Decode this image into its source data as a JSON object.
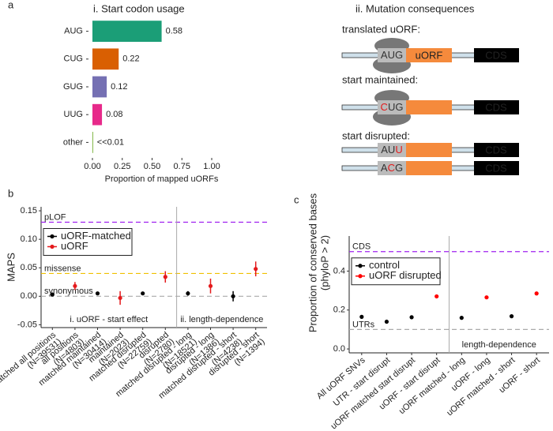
{
  "panel_letters": [
    "a",
    "b",
    "c"
  ],
  "chart_data": [
    {
      "type": "bar",
      "title": "i. Start codon usage",
      "categories": [
        "AUG",
        "CUG",
        "GUG",
        "UUG",
        "other"
      ],
      "values": [
        0.58,
        0.22,
        0.12,
        0.08,
        0.005
      ],
      "value_labels": [
        "0.58",
        "0.22",
        "0.12",
        "0.08",
        "<<0.01"
      ],
      "colors": [
        "#1b9e77",
        "#d95f02",
        "#7570b3",
        "#e7298a",
        "#66a61e"
      ],
      "xlabel": "Proportion of mapped uORFs",
      "xlim": [
        0,
        1
      ],
      "xticks": [
        {
          "value": 0,
          "label": "0.00"
        },
        {
          "value": 0.25,
          "label": "0.25"
        },
        {
          "value": 0.5,
          "label": "0.50"
        },
        {
          "value": 0.75,
          "label": "0.75"
        },
        {
          "value": 1,
          "label": "1.00"
        }
      ]
    },
    {
      "type": "pointrange",
      "ylabel": [
        "MAPS"
      ],
      "categories": [
        "matched all positions",
        "all positions",
        "matched maintained",
        "maintained",
        "matched disrupted",
        "disrupted",
        "matched disrupted - long",
        "disrupted - long",
        "matched disrupted - short",
        "disrupted - short"
      ],
      "category_notes": [
        "(N=39531)",
        "(N=4803)",
        "(N=30414)",
        "(N=2023)",
        "(N=22759)",
        "(N=2780)",
        "(N=18521)",
        "(N=1386)",
        "(N=4238)",
        "(N=1394)"
      ],
      "series": [
        {
          "name": "uORF-matched",
          "color": "#000000",
          "values": [
            0.003,
            null,
            0.005,
            null,
            0.005,
            null,
            0.005,
            null,
            0.0,
            null
          ],
          "errors": [
            0.002,
            null,
            0.003,
            null,
            0.003,
            null,
            0.004,
            null,
            0.009,
            null
          ]
        },
        {
          "name": "uORF",
          "color": "#e41a1c",
          "values": [
            null,
            0.018,
            null,
            -0.003,
            null,
            0.034,
            null,
            0.018,
            null,
            0.048
          ],
          "errors": [
            null,
            0.007,
            null,
            0.012,
            null,
            0.01,
            null,
            0.013,
            null,
            0.013
          ]
        }
      ],
      "reference_lines": [
        {
          "label": "pLOF",
          "value": 0.13,
          "color": "#a020f0"
        },
        {
          "label": "missense",
          "value": 0.04,
          "color": "#f0c000"
        },
        {
          "label": "synonymous",
          "value": 0,
          "color": "#aaaaaa"
        }
      ],
      "sections": [
        {
          "label": "i. uORF - start effect",
          "count": 6
        },
        {
          "label": "ii. length-dependence",
          "count": 4
        }
      ],
      "ylim": [
        -0.055,
        0.157
      ],
      "yticks": [
        {
          "value": -0.05,
          "label": "-0.05"
        },
        {
          "value": 0,
          "label": "0.00"
        },
        {
          "value": 0.05,
          "label": "0.05"
        },
        {
          "value": 0.1,
          "label": "0.10"
        },
        {
          "value": 0.15,
          "label": "0.15"
        }
      ],
      "legend": "top-left"
    },
    {
      "type": "pointrange",
      "ylabel": [
        "Proportion of conserved bases",
        "(phyloP > 2)"
      ],
      "categories": [
        "All uORF SNVs",
        "UTR - start disrupt",
        "uORF matched start disrupt",
        "uORF - start disrupt",
        "uORF matched - long",
        "uORF - long",
        "uORF matched - short",
        "uORF - short"
      ],
      "series": [
        {
          "name": "control",
          "color": "#000000",
          "values": [
            0.165,
            0.14,
            0.163,
            null,
            0.16,
            null,
            0.168,
            null
          ]
        },
        {
          "name": "uORF disrupted",
          "color": "#ff0000",
          "values": [
            null,
            null,
            null,
            0.27,
            null,
            0.265,
            null,
            0.285
          ]
        }
      ],
      "reference_lines": [
        {
          "label": "CDS",
          "value": 0.5,
          "color": "#a020f0"
        },
        {
          "label": "UTRs",
          "value": 0.1,
          "color": "#aaaaaa"
        }
      ],
      "sections": [
        {
          "count": 4
        },
        {
          "label": "length-dependence",
          "count": 4
        }
      ],
      "ylim": [
        -0.02,
        0.58
      ],
      "yticks": [
        {
          "value": 0,
          "label": "0.0"
        },
        {
          "value": 0.2,
          "label": "0.2"
        },
        {
          "value": 0.4,
          "label": "0.4"
        }
      ],
      "legend": "top-left"
    }
  ],
  "diagram": {
    "title": "ii. Mutation consequences",
    "rows": [
      {
        "label": "translated uORF:",
        "ribosome": true,
        "codon": [
          {
            "text": "AUG",
            "color": "#333333"
          }
        ],
        "uorf": "uORF",
        "cds": "CDS"
      },
      {
        "label": "start maintained:",
        "ribosome": true,
        "codon": [
          {
            "text": "C",
            "color": "#e41a1c"
          },
          {
            "text": "UG",
            "color": "#333333"
          }
        ],
        "cds": "CDS"
      },
      {
        "label": "start disrupted:",
        "ribosome": false,
        "codon": [
          {
            "text": "AU",
            "color": "#333333"
          },
          {
            "text": "U",
            "color": "#e41a1c"
          }
        ],
        "cds": "CDS"
      },
      {
        "ribosome": false,
        "codon": [
          {
            "text": "A",
            "color": "#333333"
          },
          {
            "text": "C",
            "color": "#e41a1c"
          },
          {
            "text": "G",
            "color": "#333333"
          }
        ],
        "cds": "CDS"
      }
    ]
  }
}
